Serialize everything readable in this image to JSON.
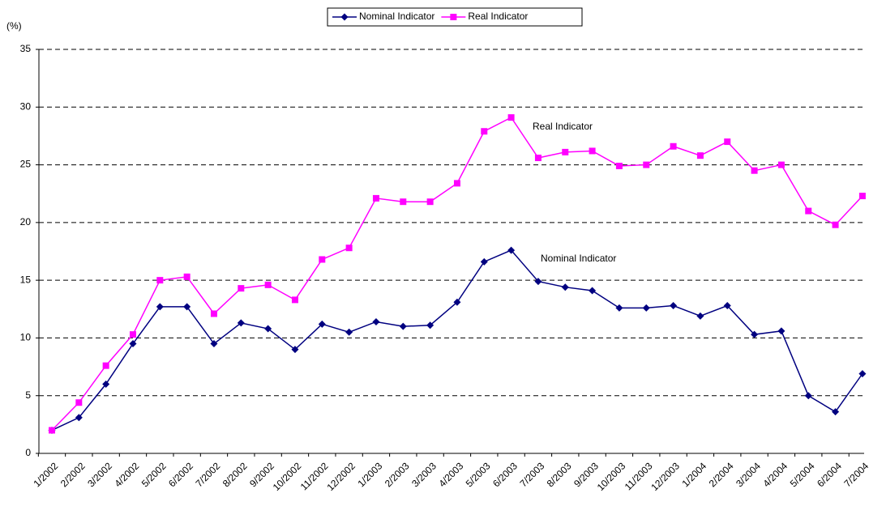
{
  "chart_data": {
    "type": "line",
    "y_label": "(%)",
    "categories": [
      "1/2002",
      "2/2002",
      "3/2002",
      "4/2002",
      "5/2002",
      "6/2002",
      "7/2002",
      "8/2002",
      "9/2002",
      "10/2002",
      "11/2002",
      "12/2002",
      "1/2003",
      "2/2003",
      "3/2003",
      "4/2003",
      "5/2003",
      "6/2003",
      "7/2003",
      "8/2003",
      "9/2003",
      "10/2003",
      "11/2003",
      "12/2003",
      "1/2004",
      "2/2004",
      "3/2004",
      "4/2004",
      "5/2004",
      "6/2004",
      "7/2004"
    ],
    "series": [
      {
        "name": "Nominal Indicator",
        "color": "#000080",
        "marker": "diamond",
        "values": [
          2.0,
          3.1,
          6.0,
          9.5,
          12.7,
          12.7,
          9.5,
          11.3,
          10.8,
          9.0,
          11.2,
          10.5,
          11.4,
          11.0,
          11.1,
          13.1,
          16.6,
          17.6,
          14.9,
          14.4,
          14.1,
          12.6,
          12.6,
          12.8,
          11.9,
          12.8,
          10.3,
          10.6,
          5.0,
          3.6,
          6.9
        ]
      },
      {
        "name": "Real Indicator",
        "color": "#ff00ff",
        "marker": "square",
        "values": [
          2.0,
          4.4,
          7.6,
          10.3,
          15.0,
          15.3,
          12.1,
          14.3,
          14.6,
          13.3,
          16.8,
          17.8,
          22.1,
          21.8,
          21.8,
          23.4,
          27.9,
          29.1,
          25.6,
          26.1,
          26.2,
          24.9,
          25.0,
          26.6,
          25.8,
          27.0,
          24.5,
          25.0,
          21.0,
          19.8,
          22.3
        ]
      }
    ],
    "annotations": [
      "Nominal Indicator",
      "Real Indicator"
    ],
    "ylim": [
      0,
      35
    ],
    "yticks": [
      0,
      5,
      10,
      15,
      20,
      25,
      30,
      35
    ],
    "grid": true,
    "legend": "top"
  }
}
